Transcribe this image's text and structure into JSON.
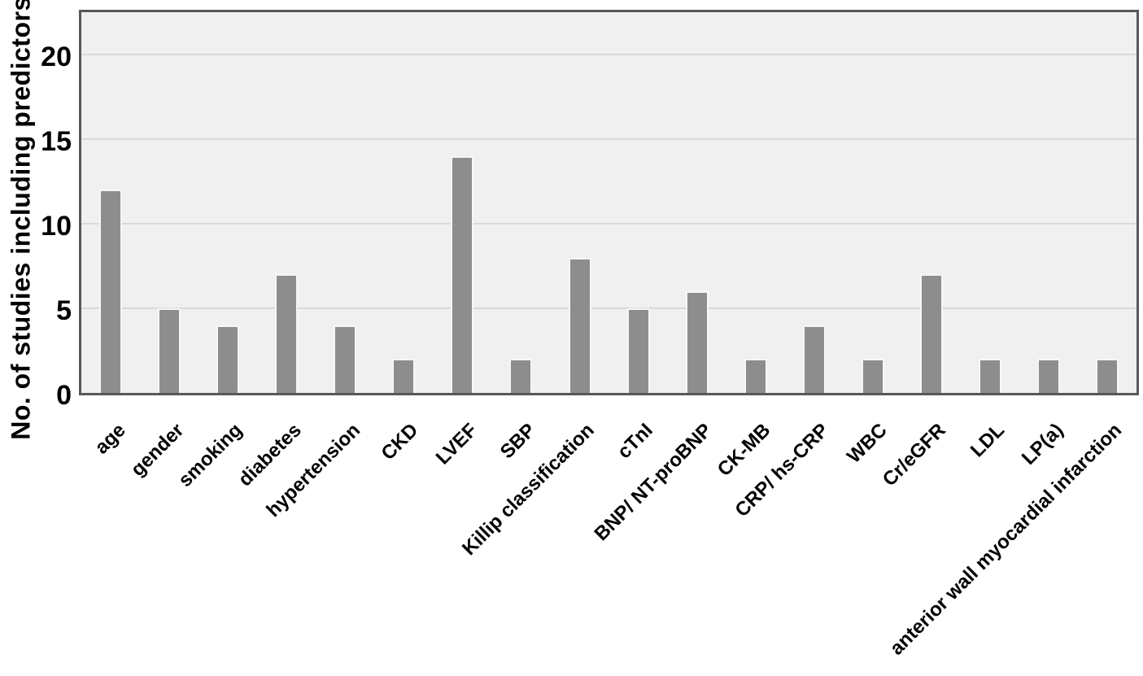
{
  "chart_data": {
    "type": "bar",
    "title": "",
    "xlabel": "",
    "ylabel": "No. of studies including predictors",
    "categories": [
      "age",
      "gender",
      "smoking",
      "diabetes",
      "hypertension",
      "CKD",
      "LVEF",
      "SBP",
      "Killip classification",
      "cTnI",
      "BNP/ NT-proBNP",
      "CK-MB",
      "CRP/ hs-CRP",
      "WBC",
      "Cr/eGFR",
      "LDL",
      "LP(a)",
      "anterior wall myocardial infarction"
    ],
    "values": [
      12,
      5,
      4,
      7,
      4,
      2,
      14,
      2,
      8,
      5,
      6,
      2,
      4,
      2,
      7,
      2,
      2,
      2
    ],
    "yticks": [
      0,
      5,
      10,
      15,
      20
    ],
    "ylim": [
      0,
      22.5
    ],
    "grid": "horizontal",
    "legend": "none",
    "x_tick_rotation_deg": 45,
    "colors": {
      "bar_fill": "#8d8d8d",
      "bar_edge": "#f6f6f6",
      "plot_bg": "#f0f0f0",
      "grid_line": "#d9d9d9",
      "frame": "#58585a",
      "text": "#000000",
      "page_bg": "#ffffff"
    }
  }
}
